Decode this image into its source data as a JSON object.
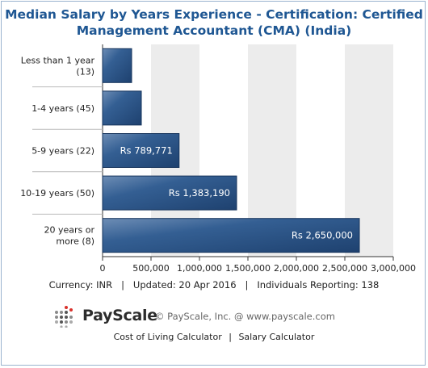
{
  "chart_data": {
    "type": "bar",
    "orientation": "horizontal",
    "title_lines": [
      "Median Salary by Years Experience - Certification: Certified",
      "Management Accountant (CMA) (India)"
    ],
    "categories": [
      [
        "Less than 1 year",
        "(13)"
      ],
      [
        "1-4 years (45)"
      ],
      [
        "5-9 years (22)"
      ],
      [
        "10-19 years (50)"
      ],
      [
        "20 years or",
        "more (8)"
      ]
    ],
    "values": [
      300000,
      400000,
      789771,
      1383190,
      2650000
    ],
    "value_labels": [
      "",
      "",
      "Rs 789,771",
      "Rs 1,383,190",
      "Rs 2,650,000"
    ],
    "xlim": [
      0,
      3000000
    ],
    "xticks": [
      0,
      500000,
      1000000,
      1500000,
      2000000,
      2500000,
      3000000
    ],
    "xtick_labels": [
      "0",
      "500,000",
      "1,000,000",
      "1,500,000",
      "2,000,000",
      "2,500,000",
      "3,000,000"
    ],
    "bar_color": "#2a5187",
    "grid": "alternating vertical bands"
  },
  "footer": {
    "currency": "Currency: INR",
    "updated": "Updated: 20 Apr 2016",
    "reporting": "Individuals Reporting: 138",
    "separator": "|"
  },
  "brand": {
    "name": "PayScale",
    "copyright": "© PayScale, Inc. @ www.payscale.com"
  },
  "links": {
    "cost_of_living": "Cost of Living Calculator",
    "salary_calculator": "Salary Calculator",
    "separator": "|"
  },
  "icons": {
    "logo": "payscale-logo-dots-icon"
  }
}
